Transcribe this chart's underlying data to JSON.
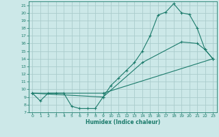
{
  "xlabel": "Humidex (Indice chaleur)",
  "background_color": "#cce8e8",
  "grid_color": "#aacccc",
  "line_color": "#1a7a6a",
  "xlim": [
    -0.5,
    23.5
  ],
  "ylim": [
    7,
    21.5
  ],
  "xticks": [
    0,
    1,
    2,
    3,
    4,
    5,
    6,
    7,
    8,
    9,
    10,
    11,
    12,
    13,
    14,
    15,
    16,
    17,
    18,
    19,
    20,
    21,
    22,
    23
  ],
  "yticks": [
    7,
    8,
    9,
    10,
    11,
    12,
    13,
    14,
    15,
    16,
    17,
    18,
    19,
    20,
    21
  ],
  "line1_x": [
    0,
    1,
    2,
    3,
    4,
    5,
    6,
    7,
    8,
    9,
    10,
    11,
    12,
    13,
    14,
    15,
    16,
    17,
    18,
    19,
    20,
    21,
    22,
    23
  ],
  "line1_y": [
    9.5,
    8.5,
    9.5,
    9.5,
    9.5,
    7.8,
    7.5,
    7.5,
    7.5,
    9.0,
    10.5,
    11.5,
    12.5,
    13.5,
    15.0,
    17.0,
    19.7,
    20.1,
    21.2,
    20.0,
    19.8,
    18.0,
    15.2,
    14.0
  ],
  "line2_x": [
    0,
    9,
    14,
    19,
    21,
    22,
    23
  ],
  "line2_y": [
    9.5,
    9.0,
    13.5,
    16.2,
    16.0,
    15.2,
    14.0
  ],
  "line3_x": [
    0,
    9,
    23
  ],
  "line3_y": [
    9.5,
    9.5,
    14.0
  ]
}
